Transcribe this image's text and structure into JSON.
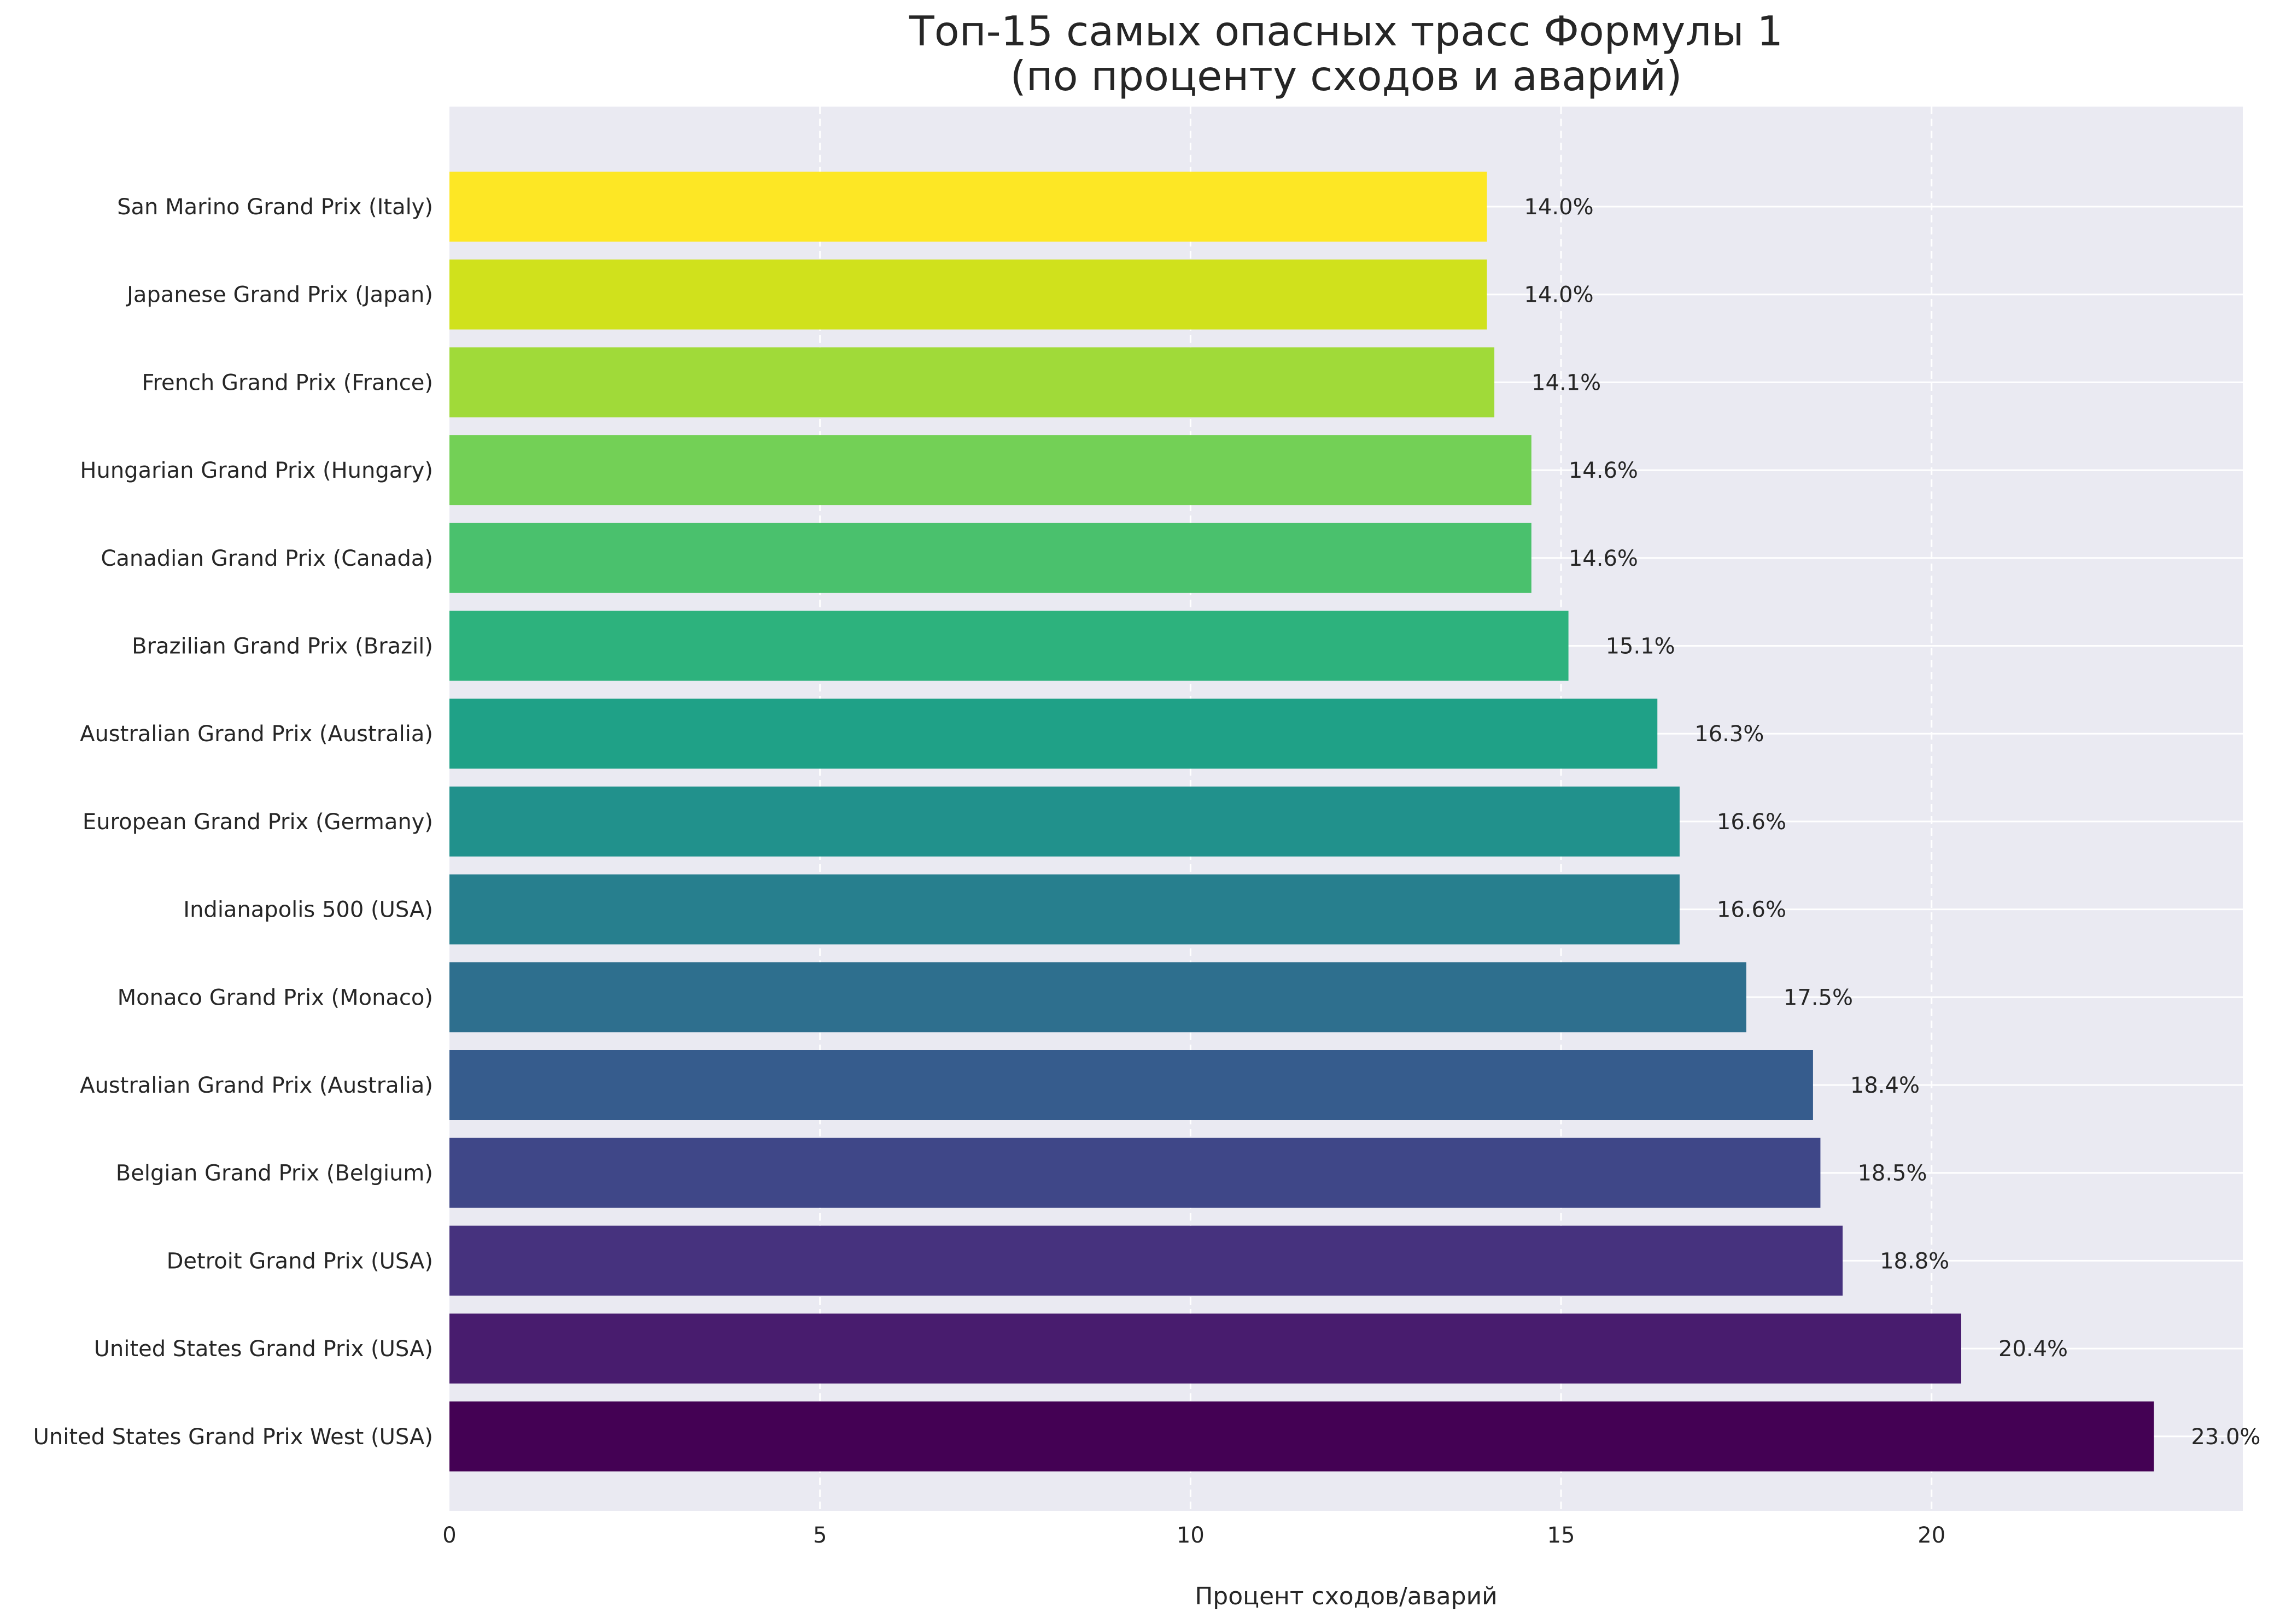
{
  "chart_data": {
    "type": "bar",
    "orientation": "horizontal",
    "title_lines": [
      "Топ-15 самых опасных трасс Формулы 1",
      "(по проценту сходов и аварий)"
    ],
    "xlabel": "Процент сходов/аварий",
    "ylabel": "",
    "xlim": [
      0,
      24.2
    ],
    "xticks": [
      0,
      5,
      10,
      15,
      20
    ],
    "grid": true,
    "legend": "none",
    "background_color": "#EAEAF2",
    "value_label_format": "{v}%",
    "categories": [
      "San Marino Grand Prix (Italy)",
      "Japanese Grand Prix (Japan)",
      "French Grand Prix (France)",
      "Hungarian Grand Prix (Hungary)",
      "Canadian Grand Prix (Canada)",
      "Brazilian Grand Prix (Brazil)",
      "Australian Grand Prix (Australia)",
      "European Grand Prix (Germany)",
      "Indianapolis 500 (USA)",
      "Monaco Grand Prix (Monaco)",
      "Australian Grand Prix (Australia)",
      "Belgian Grand Prix (Belgium)",
      "Detroit Grand Prix (USA)",
      "United States Grand Prix (USA)",
      "United States Grand Prix West (USA)"
    ],
    "values": [
      14.0,
      14.0,
      14.1,
      14.6,
      14.6,
      15.1,
      16.3,
      16.6,
      16.6,
      17.5,
      18.4,
      18.5,
      18.8,
      20.4,
      23.0
    ],
    "value_labels": [
      "14.0%",
      "14.0%",
      "14.1%",
      "14.6%",
      "14.6%",
      "15.1%",
      "16.3%",
      "16.6%",
      "16.6%",
      "17.5%",
      "18.4%",
      "18.5%",
      "18.8%",
      "20.4%",
      "23.0%"
    ],
    "colors": [
      "#FDE725",
      "#D0E11C",
      "#A0DA39",
      "#73D056",
      "#4AC16D",
      "#2DB27D",
      "#1FA187",
      "#21918C",
      "#277F8E",
      "#2E6F8E",
      "#365C8D",
      "#3F4788",
      "#46327E",
      "#481C6E",
      "#440154"
    ]
  }
}
